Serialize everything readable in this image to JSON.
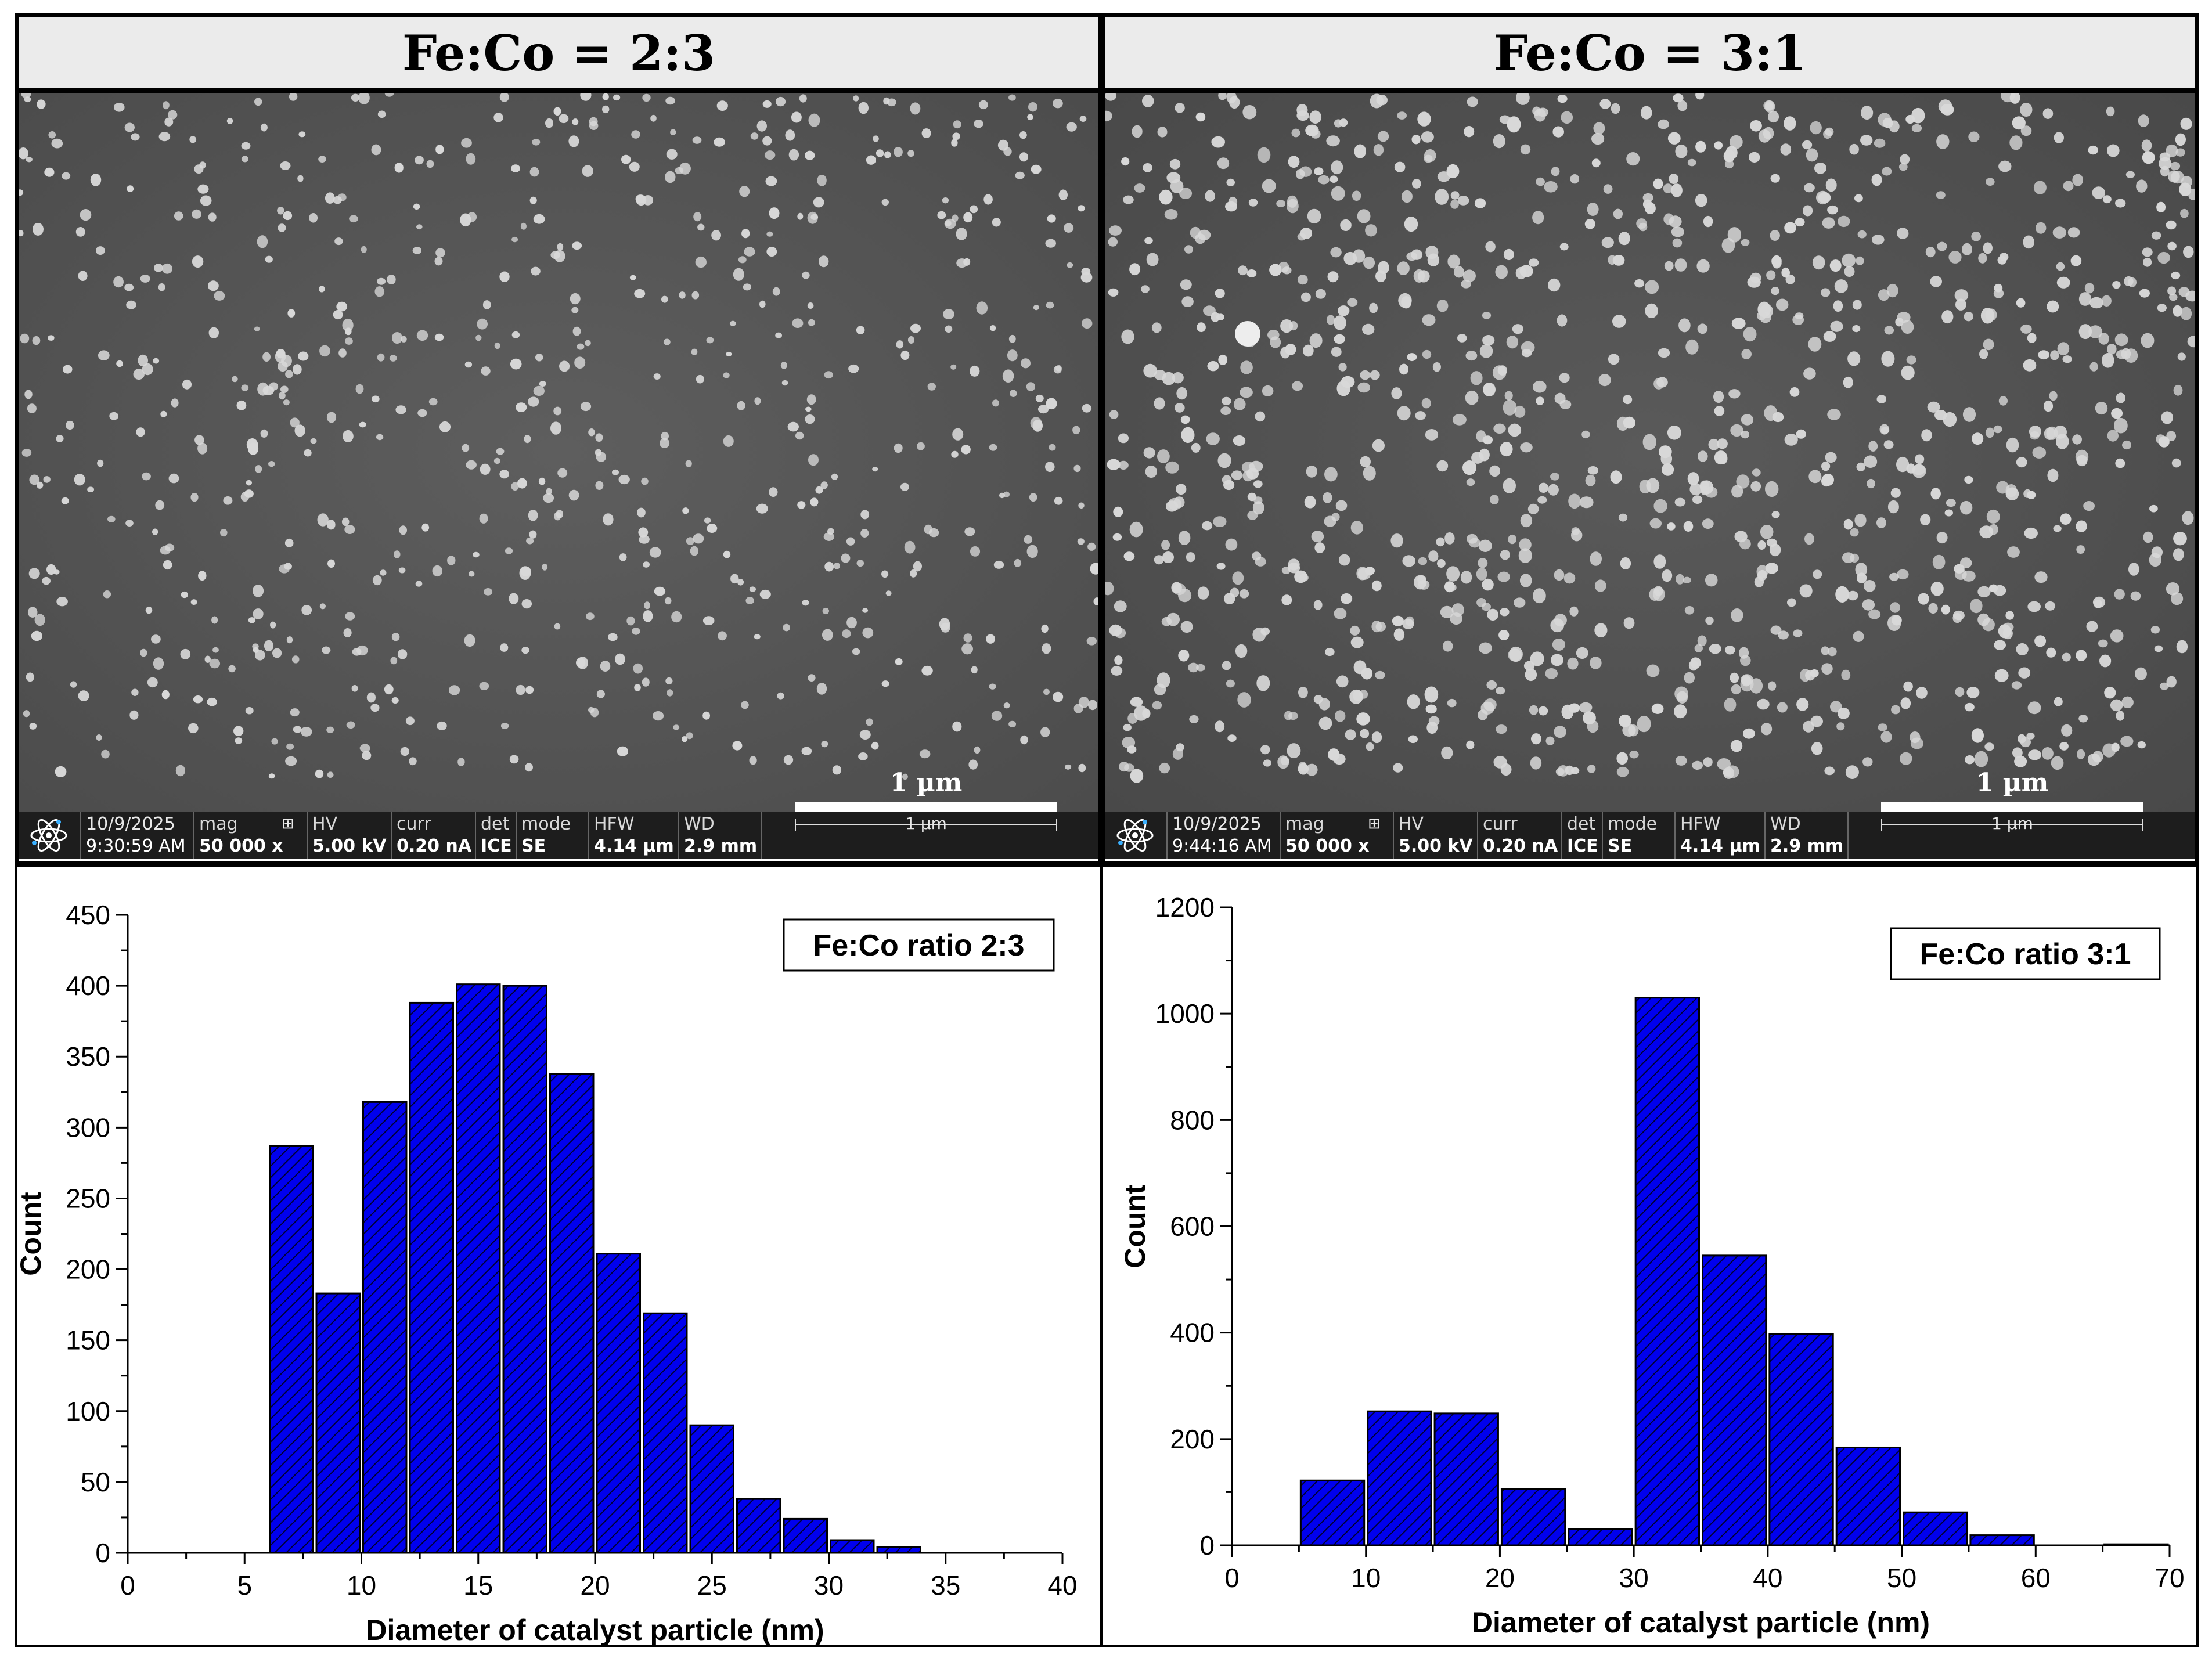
{
  "figure_panels": [
    {
      "title": "Fe:Co = 2:3",
      "scale_label": "1 µm",
      "databar": {
        "date": "10/9/2025",
        "time": "9:30:59 AM",
        "mag_label": "mag",
        "mag_value": "50 000 x",
        "hv_label": "HV",
        "hv_value": "5.00 kV",
        "curr_label": "curr",
        "curr_value": "0.20 nA",
        "det_label": "det",
        "det_value": "ICE",
        "mode_label": "mode",
        "mode_value": "SE",
        "hfw_label": "HFW",
        "hfw_value": "4.14 µm",
        "wd_label": "WD",
        "wd_value": "2.9 mm",
        "scale_small": "1 µm"
      }
    },
    {
      "title": "Fe:Co = 3:1",
      "scale_label": "1 µm",
      "databar": {
        "date": "10/9/2025",
        "time": "9:44:16 AM",
        "mag_label": "mag",
        "mag_value": "50 000 x",
        "hv_label": "HV",
        "hv_value": "5.00 kV",
        "curr_label": "curr",
        "curr_value": "0.20 nA",
        "det_label": "det",
        "det_value": "ICE",
        "mode_label": "mode",
        "mode_value": "SE",
        "hfw_label": "HFW",
        "hfw_value": "4.14 µm",
        "wd_label": "WD",
        "wd_value": "2.9 mm",
        "scale_small": "1 µm"
      }
    }
  ],
  "colors": {
    "bar_fill": "#0000ee",
    "bar_hatch": "#000033",
    "sem_background": "#5a5a5a",
    "particle": "#d8d8d8"
  },
  "chart_data": [
    {
      "type": "bar",
      "legend": "Fe:Co ratio 2:3",
      "xlabel": "Diameter of catalyst particle (nm)",
      "ylabel": "Count",
      "xlim": [
        0,
        40
      ],
      "ylim": [
        0,
        450
      ],
      "x_ticks": [
        0,
        5,
        10,
        15,
        20,
        25,
        30,
        35,
        40
      ],
      "y_ticks": [
        0,
        50,
        100,
        150,
        200,
        250,
        300,
        350,
        400,
        450
      ],
      "bin_width": 2,
      "bin_starts": [
        6,
        8,
        10,
        12,
        14,
        16,
        18,
        20,
        22,
        24,
        26,
        28,
        30,
        32
      ],
      "values": [
        287,
        183,
        318,
        388,
        401,
        400,
        338,
        211,
        169,
        90,
        38,
        24,
        9,
        4
      ]
    },
    {
      "type": "bar",
      "legend": "Fe:Co ratio 3:1",
      "xlabel": "Diameter of catalyst particle (nm)",
      "ylabel": "Count",
      "xlim": [
        0,
        70
      ],
      "ylim": [
        0,
        1200
      ],
      "x_ticks": [
        0,
        10,
        20,
        30,
        40,
        50,
        60,
        70
      ],
      "y_ticks": [
        0,
        200,
        400,
        600,
        800,
        1000,
        1200
      ],
      "bin_width": 5,
      "bin_starts": [
        5,
        10,
        15,
        20,
        25,
        30,
        35,
        40,
        45,
        50,
        55,
        60,
        65
      ],
      "values": [
        122,
        252,
        248,
        106,
        31,
        1030,
        545,
        398,
        184,
        62,
        19,
        0,
        2
      ]
    }
  ]
}
